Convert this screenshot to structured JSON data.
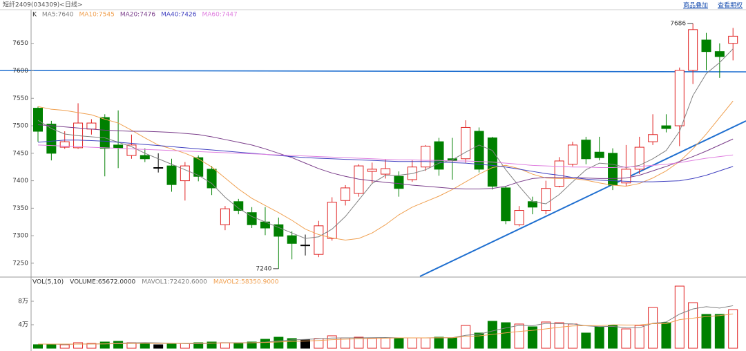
{
  "header": {
    "title": "短纤2409(034309)<日线>",
    "buttons": [
      "商品叠加",
      "查看期权"
    ]
  },
  "chart_data": [
    {
      "type": "candlestick",
      "label": "K",
      "up_color": "#e02020",
      "down_color": "#008000",
      "flat_color": "#000000",
      "ylim": [
        7226,
        7710
      ],
      "yticks": [
        7250,
        7300,
        7350,
        7400,
        7450,
        7500,
        7550,
        7600,
        7650
      ],
      "open": [
        7532,
        7503,
        7461,
        7460,
        7494,
        7515,
        7465,
        7446,
        7446,
        7424,
        7427,
        7400,
        7442,
        7421,
        7320,
        7362,
        7342,
        7325,
        7320,
        7300,
        7283,
        7266,
        7295,
        7364,
        7377,
        7417,
        7412,
        7408,
        7402,
        7425,
        7471,
        7440,
        7440,
        7490,
        7478,
        7387,
        7320,
        7362,
        7346,
        7390,
        7430,
        7474,
        7452,
        7450,
        7396,
        7421,
        7471,
        7500,
        7500,
        7601,
        7656,
        7635,
        7650
      ],
      "high": [
        7535,
        7509,
        7490,
        7541,
        7512,
        7521,
        7528,
        7484,
        7459,
        7450,
        7440,
        7434,
        7446,
        7427,
        7354,
        7367,
        7352,
        7352,
        7333,
        7308,
        7302,
        7327,
        7370,
        7392,
        7430,
        7433,
        7439,
        7417,
        7437,
        7465,
        7478,
        7478,
        7510,
        7497,
        7480,
        7390,
        7354,
        7371,
        7400,
        7443,
        7471,
        7480,
        7480,
        7459,
        7465,
        7480,
        7521,
        7521,
        7606,
        7686,
        7669,
        7650,
        7678
      ],
      "low": [
        7471,
        7437,
        7458,
        7458,
        7484,
        7408,
        7423,
        7440,
        7434,
        7415,
        7380,
        7364,
        7399,
        7374,
        7310,
        7339,
        7314,
        7301,
        7240,
        7257,
        7264,
        7261,
        7291,
        7355,
        7371,
        7396,
        7404,
        7371,
        7398,
        7418,
        7409,
        7402,
        7433,
        7415,
        7384,
        7321,
        7317,
        7339,
        7339,
        7388,
        7426,
        7430,
        7437,
        7383,
        7390,
        7412,
        7465,
        7488,
        7463,
        7576,
        7601,
        7587,
        7619
      ],
      "close": [
        7490,
        7450,
        7471,
        7505,
        7505,
        7459,
        7460,
        7465,
        7440,
        7424,
        7393,
        7427,
        7408,
        7387,
        7349,
        7346,
        7320,
        7314,
        7299,
        7286,
        7283,
        7318,
        7361,
        7387,
        7427,
        7421,
        7422,
        7386,
        7425,
        7463,
        7421,
        7436,
        7497,
        7421,
        7390,
        7327,
        7346,
        7352,
        7386,
        7436,
        7465,
        7440,
        7442,
        7392,
        7421,
        7461,
        7484,
        7495,
        7601,
        7675,
        7635,
        7626,
        7663
      ],
      "series": [
        {
          "name": "MA5:7640",
          "color": "#808080",
          "values": [
            7510,
            7495,
            7485,
            7482,
            7480,
            7478,
            7470,
            7462,
            7450,
            7440,
            7430,
            7420,
            7410,
            7395,
            7370,
            7350,
            7335,
            7325,
            7315,
            7305,
            7295,
            7298,
            7312,
            7335,
            7365,
            7395,
            7410,
            7410,
            7413,
            7420,
            7432,
            7438,
            7452,
            7465,
            7455,
            7420,
            7390,
            7362,
            7358,
            7375,
            7398,
            7420,
            7432,
            7430,
            7424,
            7428,
            7440,
            7455,
            7490,
            7555,
            7595,
            7615,
            7640
          ]
        },
        {
          "name": "MA10:7545",
          "color": "#f0a050",
          "values": [
            7535,
            7530,
            7528,
            7524,
            7520,
            7512,
            7505,
            7492,
            7478,
            7465,
            7458,
            7450,
            7440,
            7425,
            7405,
            7385,
            7368,
            7355,
            7342,
            7328,
            7312,
            7302,
            7296,
            7292,
            7295,
            7305,
            7320,
            7338,
            7352,
            7362,
            7372,
            7384,
            7398,
            7412,
            7424,
            7428,
            7422,
            7412,
            7405,
            7404,
            7404,
            7401,
            7396,
            7392,
            7390,
            7395,
            7405,
            7418,
            7435,
            7458,
            7485,
            7515,
            7545
          ]
        },
        {
          "name": "MA20:7476",
          "color": "#7a3d8a",
          "values": [
            7502,
            7500,
            7498,
            7496,
            7494,
            7492,
            7491,
            7490,
            7490,
            7489,
            7488,
            7486,
            7484,
            7480,
            7475,
            7470,
            7465,
            7458,
            7450,
            7442,
            7432,
            7422,
            7414,
            7408,
            7403,
            7400,
            7397,
            7395,
            7392,
            7390,
            7388,
            7386,
            7385,
            7385,
            7386,
            7390,
            7398,
            7404,
            7406,
            7406,
            7406,
            7405,
            7404,
            7404,
            7405,
            7410,
            7418,
            7426,
            7435,
            7444,
            7454,
            7465,
            7476
          ]
        },
        {
          "name": "MA40:7426",
          "color": "#4040c0",
          "values": [
            7470,
            7472,
            7474,
            7474,
            7473,
            7472,
            7470,
            7468,
            7466,
            7464,
            7462,
            7460,
            7458,
            7456,
            7454,
            7452,
            7450,
            7448,
            7446,
            7444,
            7442,
            7441,
            7440,
            7439,
            7438,
            7437,
            7436,
            7435,
            7435,
            7435,
            7434,
            7433,
            7432,
            7430,
            7428,
            7425,
            7421,
            7417,
            7413,
            7410,
            7406,
            7403,
            7401,
            7400,
            7399,
            7398,
            7398,
            7399,
            7400,
            7404,
            7410,
            7418,
            7426
          ]
        },
        {
          "name": "MA60:7447",
          "color": "#e080e0",
          "values": [
            7465,
            7464,
            7463,
            7462,
            7461,
            7460,
            7459,
            7458,
            7457,
            7456,
            7455,
            7454,
            7453,
            7452,
            7451,
            7450,
            7449,
            7448,
            7447,
            7446,
            7445,
            7444,
            7443,
            7442,
            7441,
            7440,
            7439,
            7438,
            7438,
            7437,
            7437,
            7436,
            7436,
            7435,
            7434,
            7432,
            7430,
            7428,
            7427,
            7426,
            7425,
            7425,
            7424,
            7424,
            7425,
            7426,
            7428,
            7430,
            7433,
            7437,
            7441,
            7444,
            7447
          ]
        }
      ]
    },
    {
      "type": "bar",
      "title": "VOL(5,10)",
      "ylim": [
        0,
        120000
      ],
      "yticks": [
        {
          "value": 40000,
          "label": "4万"
        },
        {
          "value": 80000,
          "label": "8万"
        }
      ],
      "series": [
        {
          "name": "VOLUME:65672.0000",
          "color": "#333333",
          "values": [
            6000,
            7000,
            6000,
            9400,
            8200,
            10600,
            11800,
            9400,
            8200,
            5900,
            7000,
            8200,
            9400,
            10600,
            9400,
            9400,
            10600,
            15300,
            18800,
            16500,
            14100,
            16500,
            21200,
            17600,
            18800,
            17600,
            17600,
            17600,
            17600,
            17600,
            18800,
            17600,
            38800,
            25900,
            45900,
            43500,
            41200,
            36500,
            44700,
            43500,
            41200,
            25900,
            36500,
            38800,
            32900,
            38800,
            69400,
            43500,
            105800,
            77600,
            57600,
            57600,
            65672
          ]
        },
        {
          "name": "MAVOL1:72420.6000",
          "color": "#808080",
          "values": [
            7000,
            7000,
            6500,
            7200,
            7300,
            7500,
            8700,
            9100,
            9600,
            9100,
            8500,
            7800,
            7700,
            8700,
            9200,
            9400,
            9500,
            10500,
            12500,
            14100,
            15000,
            16200,
            17400,
            17600,
            17700,
            17900,
            18200,
            17700,
            17700,
            17700,
            17900,
            17900,
            22100,
            23800,
            29400,
            34500,
            39000,
            38400,
            42300,
            41800,
            41400,
            38200,
            36700,
            37200,
            35000,
            34800,
            42500,
            44700,
            58100,
            66900,
            70800,
            68400,
            72420
          ]
        },
        {
          "name": "MAVOL2:58350.9000",
          "color": "#f0a050",
          "values": [
            7000,
            7000,
            7000,
            7100,
            7200,
            7400,
            7800,
            8100,
            8400,
            8300,
            8400,
            8400,
            8500,
            8800,
            8900,
            9000,
            9300,
            9900,
            10700,
            11600,
            12200,
            13300,
            14500,
            15400,
            16200,
            16600,
            17100,
            17600,
            17600,
            17600,
            17800,
            17800,
            20100,
            21000,
            23600,
            26200,
            28600,
            30400,
            33000,
            35800,
            38000,
            38600,
            38600,
            39900,
            39600,
            39600,
            41900,
            41800,
            48700,
            51200,
            54000,
            55600,
            58350
          ]
        }
      ]
    }
  ]
}
